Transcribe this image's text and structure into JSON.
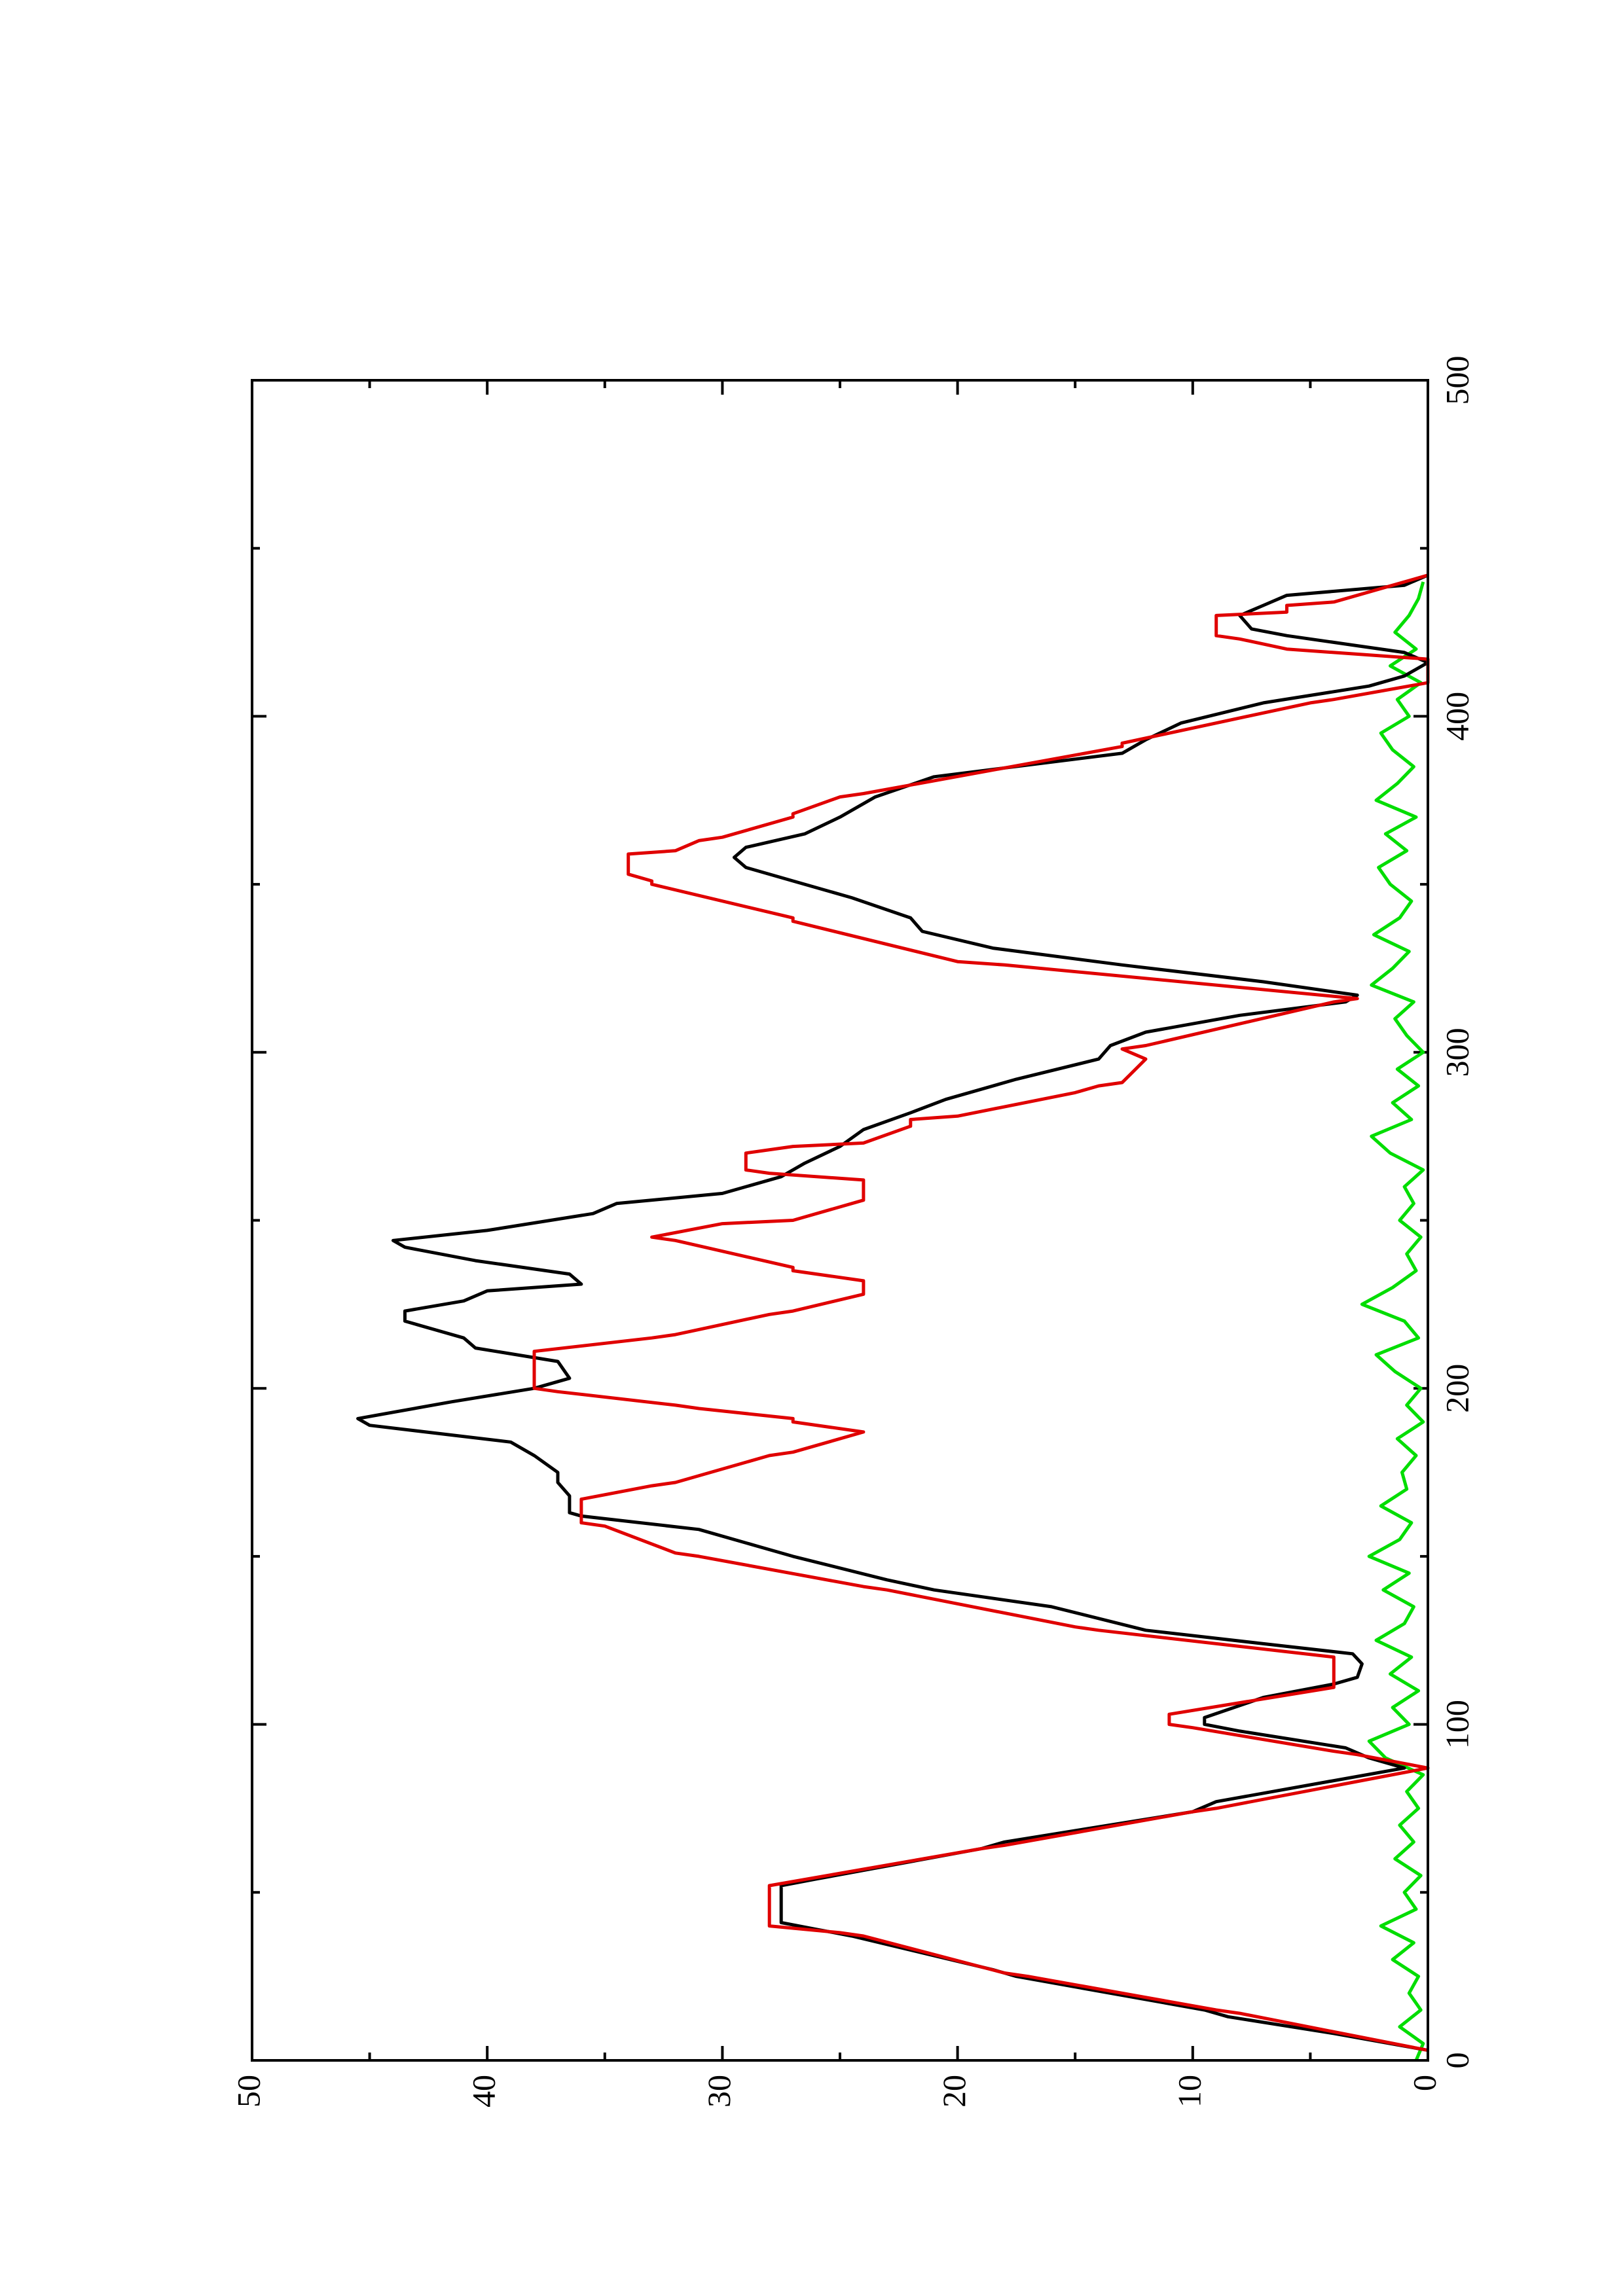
{
  "chart_data": {
    "type": "line",
    "xlim": [
      0,
      500
    ],
    "xticks": [
      0,
      100,
      200,
      300,
      400,
      500
    ],
    "ylim": [
      0,
      50
    ],
    "yticks": [
      0,
      10,
      20,
      30,
      40,
      50
    ],
    "series": [
      {
        "color": "#000000",
        "x": [
          3,
          8,
          13,
          15,
          25,
          27,
          37,
          39,
          41,
          52,
          54,
          63,
          65,
          74,
          77,
          87,
          90,
          93,
          98,
          100,
          102,
          108,
          112,
          114,
          118,
          121,
          124,
          128,
          135,
          140,
          143,
          150,
          153,
          158,
          162,
          163,
          168,
          172,
          175,
          180,
          184,
          189,
          191,
          196,
          200,
          203,
          208,
          212,
          215,
          218,
          220,
          223,
          226,
          229,
          231,
          234,
          238,
          242,
          244,
          247,
          252,
          255,
          258,
          263,
          267,
          272,
          277,
          282,
          286,
          292,
          298,
          302,
          306,
          311,
          315,
          317,
          321,
          326,
          331,
          336,
          340,
          346,
          351,
          355,
          358,
          361,
          365,
          370,
          376,
          382,
          389,
          393,
          398,
          404,
          409,
          412,
          416,
          419,
          421,
          424,
          426,
          430,
          433,
          436,
          439,
          442
        ],
        "values": [
          0,
          4,
          8.5,
          9.5,
          17.5,
          18.5,
          24.5,
          26,
          27.5,
          27.5,
          26,
          19,
          18,
          10,
          9,
          1,
          2.5,
          3.5,
          8,
          9.5,
          9.5,
          7,
          4,
          3,
          2.8,
          3.2,
          7,
          12,
          16,
          21,
          23,
          27,
          28.5,
          31,
          36,
          36.5,
          36.5,
          37,
          37,
          38,
          39,
          45,
          45.5,
          41.5,
          38,
          36.5,
          37,
          40.5,
          41,
          42.5,
          43.5,
          43.5,
          41,
          40,
          36,
          36.5,
          40.5,
          43.5,
          44,
          40,
          35.5,
          34.5,
          30,
          27.5,
          26.5,
          25,
          24,
          22,
          20.5,
          17.5,
          14,
          13.5,
          12,
          8,
          3.5,
          3,
          7,
          13,
          18.5,
          21.5,
          22,
          24.5,
          27,
          29,
          29.5,
          29,
          26.5,
          25,
          23.5,
          21,
          13,
          12,
          10.5,
          7,
          2.5,
          1,
          0,
          1,
          3,
          6,
          7.5,
          8,
          7,
          6,
          1,
          0
        ]
      },
      {
        "color": "#e00000",
        "x": [
          3,
          14,
          15,
          25,
          26,
          37,
          38,
          40,
          52,
          63,
          64,
          74,
          75,
          87,
          91,
          92,
          99,
          100,
          103,
          111,
          120,
          128,
          129,
          140,
          141,
          150,
          151,
          159,
          160,
          167,
          171,
          172,
          180,
          181,
          187,
          190,
          191,
          194,
          195,
          199,
          200,
          211,
          215,
          216,
          222,
          223,
          228,
          232,
          235,
          236,
          244,
          245,
          249,
          250,
          256,
          257,
          262,
          264,
          265,
          270,
          272,
          273,
          278,
          280,
          281,
          288,
          290,
          291,
          298,
          301,
          302,
          315,
          316,
          326,
          327,
          339,
          340,
          350,
          351,
          353,
          354,
          359,
          360,
          363,
          364,
          370,
          371,
          376,
          377,
          391,
          392,
          404,
          405,
          410,
          417,
          419,
          420,
          423,
          424,
          430,
          431,
          433,
          434,
          442
        ],
        "values": [
          0,
          8,
          9,
          17,
          18,
          24,
          25,
          28,
          28,
          19,
          18,
          10,
          9,
          0,
          3,
          4,
          10,
          11,
          11,
          4,
          4,
          14,
          15,
          23,
          24,
          31,
          32,
          35,
          36,
          36,
          33,
          32,
          28,
          27,
          24,
          27,
          27,
          31,
          32,
          37,
          38,
          38,
          33,
          32,
          28,
          27,
          24,
          24,
          27,
          27,
          32,
          33,
          30,
          27,
          24,
          24,
          24,
          28,
          29,
          29,
          27,
          24,
          22,
          22,
          20,
          15,
          14,
          13,
          12,
          13,
          12,
          4,
          3,
          18,
          20,
          27,
          27,
          33,
          33,
          34,
          34,
          34,
          32,
          31,
          30,
          27,
          27,
          25,
          24,
          13,
          13,
          5,
          4,
          0,
          0,
          4,
          6,
          8,
          9,
          9,
          6,
          6,
          4,
          0
        ]
      },
      {
        "color": "#00dd00",
        "x": [
          0,
          5,
          10,
          15,
          20,
          25,
          30,
          35,
          40,
          45,
          50,
          55,
          60,
          65,
          70,
          75,
          80,
          85,
          90,
          95,
          100,
          105,
          110,
          115,
          120,
          125,
          130,
          135,
          140,
          145,
          150,
          155,
          160,
          165,
          170,
          175,
          180,
          185,
          190,
          195,
          200,
          205,
          210,
          215,
          220,
          225,
          230,
          235,
          240,
          245,
          250,
          255,
          260,
          265,
          270,
          275,
          280,
          285,
          290,
          295,
          300,
          305,
          310,
          315,
          320,
          325,
          330,
          335,
          340,
          345,
          350,
          355,
          360,
          365,
          370,
          375,
          380,
          385,
          390,
          395,
          400,
          405,
          410,
          415,
          420,
          425,
          430,
          435,
          440
        ],
        "values": [
          0.5,
          0.2,
          1.2,
          0.3,
          0.8,
          0.4,
          1.5,
          0.6,
          2,
          0.5,
          1,
          0.3,
          1.4,
          0.6,
          1.2,
          0.4,
          0.9,
          0.2,
          1.8,
          2.5,
          0.8,
          1.5,
          0.4,
          1.6,
          0.7,
          2.2,
          1,
          0.6,
          1.9,
          0.8,
          2.5,
          1.2,
          0.7,
          2,
          0.9,
          1.1,
          0.5,
          1.3,
          0.2,
          0.9,
          0.3,
          1.4,
          2.2,
          0.4,
          1,
          2.8,
          1.5,
          0.5,
          0.9,
          0.3,
          1.2,
          0.6,
          1,
          0.2,
          1.6,
          2.4,
          0.7,
          1.5,
          0.4,
          1.3,
          0.2,
          0.9,
          1.4,
          0.6,
          2.4,
          1.5,
          0.8,
          2.3,
          1.2,
          0.7,
          1.6,
          2.1,
          0.9,
          1.8,
          0.5,
          2.2,
          1.3,
          0.6,
          1.5,
          2,
          0.8,
          1.3,
          0.3,
          1.6,
          0.5,
          1.4,
          0.8,
          0.4,
          0.2
        ]
      }
    ]
  }
}
